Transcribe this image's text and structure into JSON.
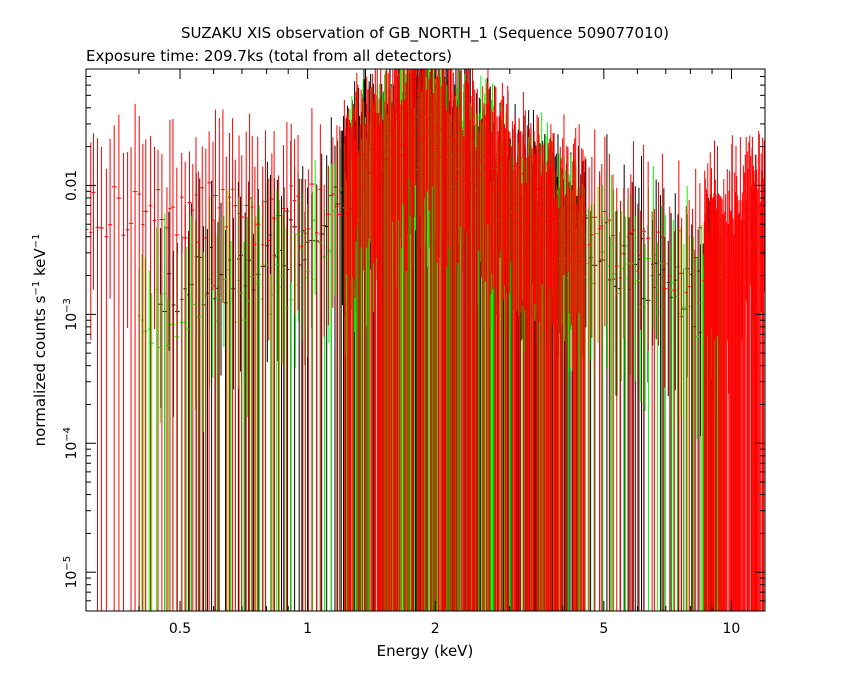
{
  "chart_data": {
    "type": "scatter",
    "title": "SUZAKU XIS observation of GB_NORTH_1 (Sequence 509077010)",
    "subtitle": "Exposure time: 209.7ks (total from all detectors)",
    "xlabel": "Energy (keV)",
    "ylabel_text": "normalized counts s",
    "ylabel_sup1": "−1",
    "ylabel_mid": " keV",
    "ylabel_sup2": "−1",
    "xscale": "log",
    "yscale": "log",
    "xlim": [
      0.3,
      12
    ],
    "ylim": [
      5e-06,
      0.08
    ],
    "grid": false,
    "x_ticks": [
      {
        "value": 0.5,
        "label": "0.5"
      },
      {
        "value": 1,
        "label": "1"
      },
      {
        "value": 2,
        "label": "2"
      },
      {
        "value": 5,
        "label": "5"
      },
      {
        "value": 10,
        "label": "10"
      }
    ],
    "y_ticks": [
      {
        "value": 0.01,
        "label": "0.01"
      },
      {
        "value": 0.001,
        "label": "10",
        "exp": "−3"
      },
      {
        "value": 0.0001,
        "label": "10",
        "exp": "−4"
      },
      {
        "value": 1e-05,
        "label": "10",
        "exp": "−5"
      }
    ],
    "colors": {
      "black": "#000000",
      "red": "#ff0000",
      "green": "#00ff00"
    },
    "series": [
      {
        "color": "black",
        "envelope": [
          [
            0.45,
            0.0015
          ],
          [
            0.6,
            0.002
          ],
          [
            0.9,
            0.003
          ],
          [
            1.2,
            0.008
          ],
          [
            1.5,
            0.015
          ],
          [
            1.85,
            0.03
          ],
          [
            2.2,
            0.018
          ],
          [
            3.0,
            0.008
          ],
          [
            4.0,
            0.004
          ],
          [
            6.0,
            0.0025
          ],
          [
            8.0,
            0.0015
          ],
          [
            9.0,
            0.001
          ]
        ]
      },
      {
        "color": "green",
        "envelope": [
          [
            0.4,
            0.0008
          ],
          [
            0.6,
            0.0012
          ],
          [
            0.9,
            0.002
          ],
          [
            1.2,
            0.006
          ],
          [
            1.5,
            0.012
          ],
          [
            1.85,
            0.025
          ],
          [
            2.2,
            0.015
          ],
          [
            3.0,
            0.006
          ],
          [
            4.0,
            0.0035
          ],
          [
            6.0,
            0.002
          ],
          [
            8.0,
            0.0012
          ],
          [
            9.5,
            0.001
          ]
        ]
      },
      {
        "color": "red",
        "envelope": [
          [
            0.3,
            0.006
          ],
          [
            0.45,
            0.008
          ],
          [
            0.7,
            0.005
          ],
          [
            1.0,
            0.006
          ],
          [
            1.3,
            0.012
          ],
          [
            1.6,
            0.02
          ],
          [
            1.85,
            0.04
          ],
          [
            2.2,
            0.02
          ],
          [
            3.0,
            0.009
          ],
          [
            4.0,
            0.005
          ],
          [
            6.0,
            0.003
          ],
          [
            8.0,
            0.0025
          ],
          [
            9.5,
            0.003
          ],
          [
            12.0,
            0.005
          ]
        ]
      }
    ]
  }
}
